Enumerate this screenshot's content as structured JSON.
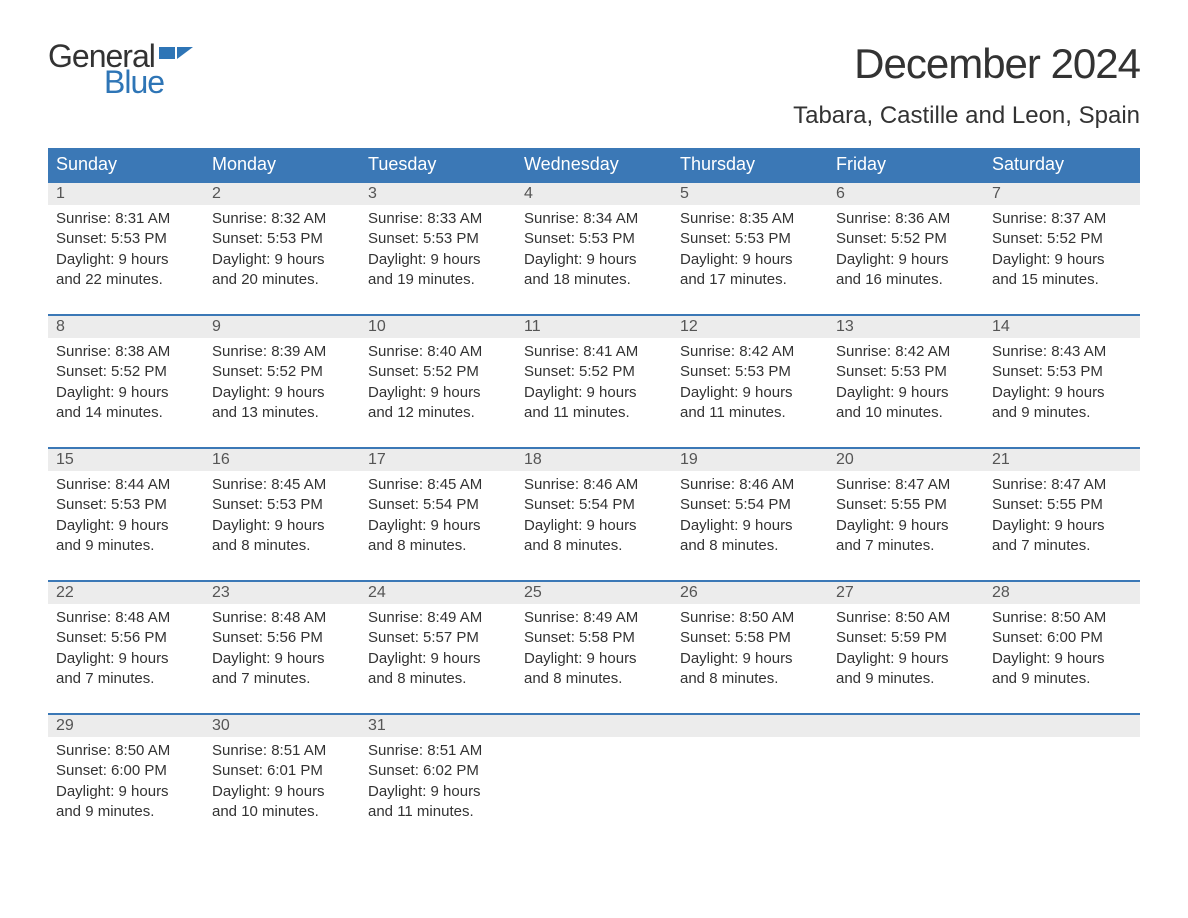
{
  "logo": {
    "word1": "General",
    "word2": "Blue",
    "word1_color": "#333333",
    "word2_color": "#2e75b6"
  },
  "title": "December 2024",
  "location": "Tabara, Castille and Leon, Spain",
  "colors": {
    "header_bg": "#3b78b6",
    "header_text": "#ffffff",
    "rule": "#3b78b6",
    "daynum_bg": "#ececec",
    "daynum_text": "#555555",
    "body_text": "#333333",
    "page_bg": "#ffffff"
  },
  "font": {
    "family": "Arial",
    "title_size": 42,
    "location_size": 24,
    "header_size": 18,
    "daynum_size": 16,
    "body_size": 15
  },
  "weekday_labels": [
    "Sunday",
    "Monday",
    "Tuesday",
    "Wednesday",
    "Thursday",
    "Friday",
    "Saturday"
  ],
  "weeks": [
    [
      {
        "n": "1",
        "sunrise": "Sunrise: 8:31 AM",
        "sunset": "Sunset: 5:53 PM",
        "day1": "Daylight: 9 hours",
        "day2": "and 22 minutes."
      },
      {
        "n": "2",
        "sunrise": "Sunrise: 8:32 AM",
        "sunset": "Sunset: 5:53 PM",
        "day1": "Daylight: 9 hours",
        "day2": "and 20 minutes."
      },
      {
        "n": "3",
        "sunrise": "Sunrise: 8:33 AM",
        "sunset": "Sunset: 5:53 PM",
        "day1": "Daylight: 9 hours",
        "day2": "and 19 minutes."
      },
      {
        "n": "4",
        "sunrise": "Sunrise: 8:34 AM",
        "sunset": "Sunset: 5:53 PM",
        "day1": "Daylight: 9 hours",
        "day2": "and 18 minutes."
      },
      {
        "n": "5",
        "sunrise": "Sunrise: 8:35 AM",
        "sunset": "Sunset: 5:53 PM",
        "day1": "Daylight: 9 hours",
        "day2": "and 17 minutes."
      },
      {
        "n": "6",
        "sunrise": "Sunrise: 8:36 AM",
        "sunset": "Sunset: 5:52 PM",
        "day1": "Daylight: 9 hours",
        "day2": "and 16 minutes."
      },
      {
        "n": "7",
        "sunrise": "Sunrise: 8:37 AM",
        "sunset": "Sunset: 5:52 PM",
        "day1": "Daylight: 9 hours",
        "day2": "and 15 minutes."
      }
    ],
    [
      {
        "n": "8",
        "sunrise": "Sunrise: 8:38 AM",
        "sunset": "Sunset: 5:52 PM",
        "day1": "Daylight: 9 hours",
        "day2": "and 14 minutes."
      },
      {
        "n": "9",
        "sunrise": "Sunrise: 8:39 AM",
        "sunset": "Sunset: 5:52 PM",
        "day1": "Daylight: 9 hours",
        "day2": "and 13 minutes."
      },
      {
        "n": "10",
        "sunrise": "Sunrise: 8:40 AM",
        "sunset": "Sunset: 5:52 PM",
        "day1": "Daylight: 9 hours",
        "day2": "and 12 minutes."
      },
      {
        "n": "11",
        "sunrise": "Sunrise: 8:41 AM",
        "sunset": "Sunset: 5:52 PM",
        "day1": "Daylight: 9 hours",
        "day2": "and 11 minutes."
      },
      {
        "n": "12",
        "sunrise": "Sunrise: 8:42 AM",
        "sunset": "Sunset: 5:53 PM",
        "day1": "Daylight: 9 hours",
        "day2": "and 11 minutes."
      },
      {
        "n": "13",
        "sunrise": "Sunrise: 8:42 AM",
        "sunset": "Sunset: 5:53 PM",
        "day1": "Daylight: 9 hours",
        "day2": "and 10 minutes."
      },
      {
        "n": "14",
        "sunrise": "Sunrise: 8:43 AM",
        "sunset": "Sunset: 5:53 PM",
        "day1": "Daylight: 9 hours",
        "day2": "and 9 minutes."
      }
    ],
    [
      {
        "n": "15",
        "sunrise": "Sunrise: 8:44 AM",
        "sunset": "Sunset: 5:53 PM",
        "day1": "Daylight: 9 hours",
        "day2": "and 9 minutes."
      },
      {
        "n": "16",
        "sunrise": "Sunrise: 8:45 AM",
        "sunset": "Sunset: 5:53 PM",
        "day1": "Daylight: 9 hours",
        "day2": "and 8 minutes."
      },
      {
        "n": "17",
        "sunrise": "Sunrise: 8:45 AM",
        "sunset": "Sunset: 5:54 PM",
        "day1": "Daylight: 9 hours",
        "day2": "and 8 minutes."
      },
      {
        "n": "18",
        "sunrise": "Sunrise: 8:46 AM",
        "sunset": "Sunset: 5:54 PM",
        "day1": "Daylight: 9 hours",
        "day2": "and 8 minutes."
      },
      {
        "n": "19",
        "sunrise": "Sunrise: 8:46 AM",
        "sunset": "Sunset: 5:54 PM",
        "day1": "Daylight: 9 hours",
        "day2": "and 8 minutes."
      },
      {
        "n": "20",
        "sunrise": "Sunrise: 8:47 AM",
        "sunset": "Sunset: 5:55 PM",
        "day1": "Daylight: 9 hours",
        "day2": "and 7 minutes."
      },
      {
        "n": "21",
        "sunrise": "Sunrise: 8:47 AM",
        "sunset": "Sunset: 5:55 PM",
        "day1": "Daylight: 9 hours",
        "day2": "and 7 minutes."
      }
    ],
    [
      {
        "n": "22",
        "sunrise": "Sunrise: 8:48 AM",
        "sunset": "Sunset: 5:56 PM",
        "day1": "Daylight: 9 hours",
        "day2": "and 7 minutes."
      },
      {
        "n": "23",
        "sunrise": "Sunrise: 8:48 AM",
        "sunset": "Sunset: 5:56 PM",
        "day1": "Daylight: 9 hours",
        "day2": "and 7 minutes."
      },
      {
        "n": "24",
        "sunrise": "Sunrise: 8:49 AM",
        "sunset": "Sunset: 5:57 PM",
        "day1": "Daylight: 9 hours",
        "day2": "and 8 minutes."
      },
      {
        "n": "25",
        "sunrise": "Sunrise: 8:49 AM",
        "sunset": "Sunset: 5:58 PM",
        "day1": "Daylight: 9 hours",
        "day2": "and 8 minutes."
      },
      {
        "n": "26",
        "sunrise": "Sunrise: 8:50 AM",
        "sunset": "Sunset: 5:58 PM",
        "day1": "Daylight: 9 hours",
        "day2": "and 8 minutes."
      },
      {
        "n": "27",
        "sunrise": "Sunrise: 8:50 AM",
        "sunset": "Sunset: 5:59 PM",
        "day1": "Daylight: 9 hours",
        "day2": "and 9 minutes."
      },
      {
        "n": "28",
        "sunrise": "Sunrise: 8:50 AM",
        "sunset": "Sunset: 6:00 PM",
        "day1": "Daylight: 9 hours",
        "day2": "and 9 minutes."
      }
    ],
    [
      {
        "n": "29",
        "sunrise": "Sunrise: 8:50 AM",
        "sunset": "Sunset: 6:00 PM",
        "day1": "Daylight: 9 hours",
        "day2": "and 9 minutes."
      },
      {
        "n": "30",
        "sunrise": "Sunrise: 8:51 AM",
        "sunset": "Sunset: 6:01 PM",
        "day1": "Daylight: 9 hours",
        "day2": "and 10 minutes."
      },
      {
        "n": "31",
        "sunrise": "Sunrise: 8:51 AM",
        "sunset": "Sunset: 6:02 PM",
        "day1": "Daylight: 9 hours",
        "day2": "and 11 minutes."
      },
      null,
      null,
      null,
      null
    ]
  ]
}
